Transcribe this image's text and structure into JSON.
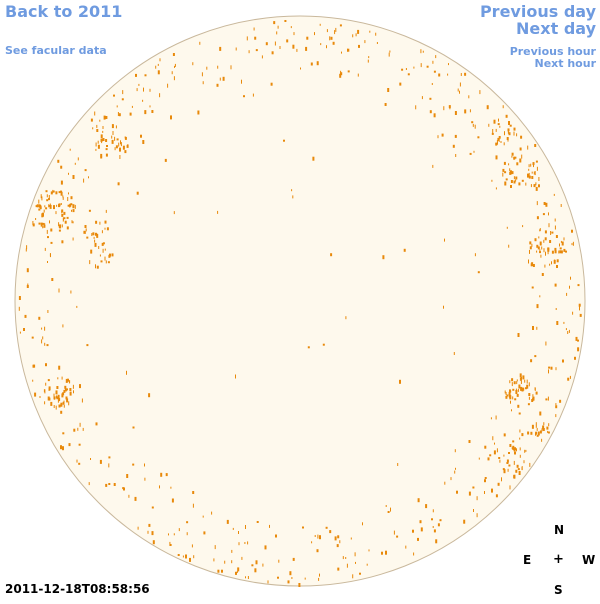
{
  "navigation": {
    "back_label": "Back to 2011",
    "facular_label": "See facular data",
    "prev_day_label": "Previous day",
    "next_day_label": "Next day",
    "prev_hour_label": "Previous hour",
    "next_hour_label": "Next hour"
  },
  "observation": {
    "timestamp": "2011-12-18T08:58:56"
  },
  "compass": {
    "north": "N",
    "east": "E",
    "center": "+",
    "west": "W",
    "south": "S"
  },
  "colors": {
    "link": "#6f9be0",
    "disk_fill": "#fef9ed",
    "disk_stroke": "#c9b89c",
    "facula": "#e8890a"
  }
}
